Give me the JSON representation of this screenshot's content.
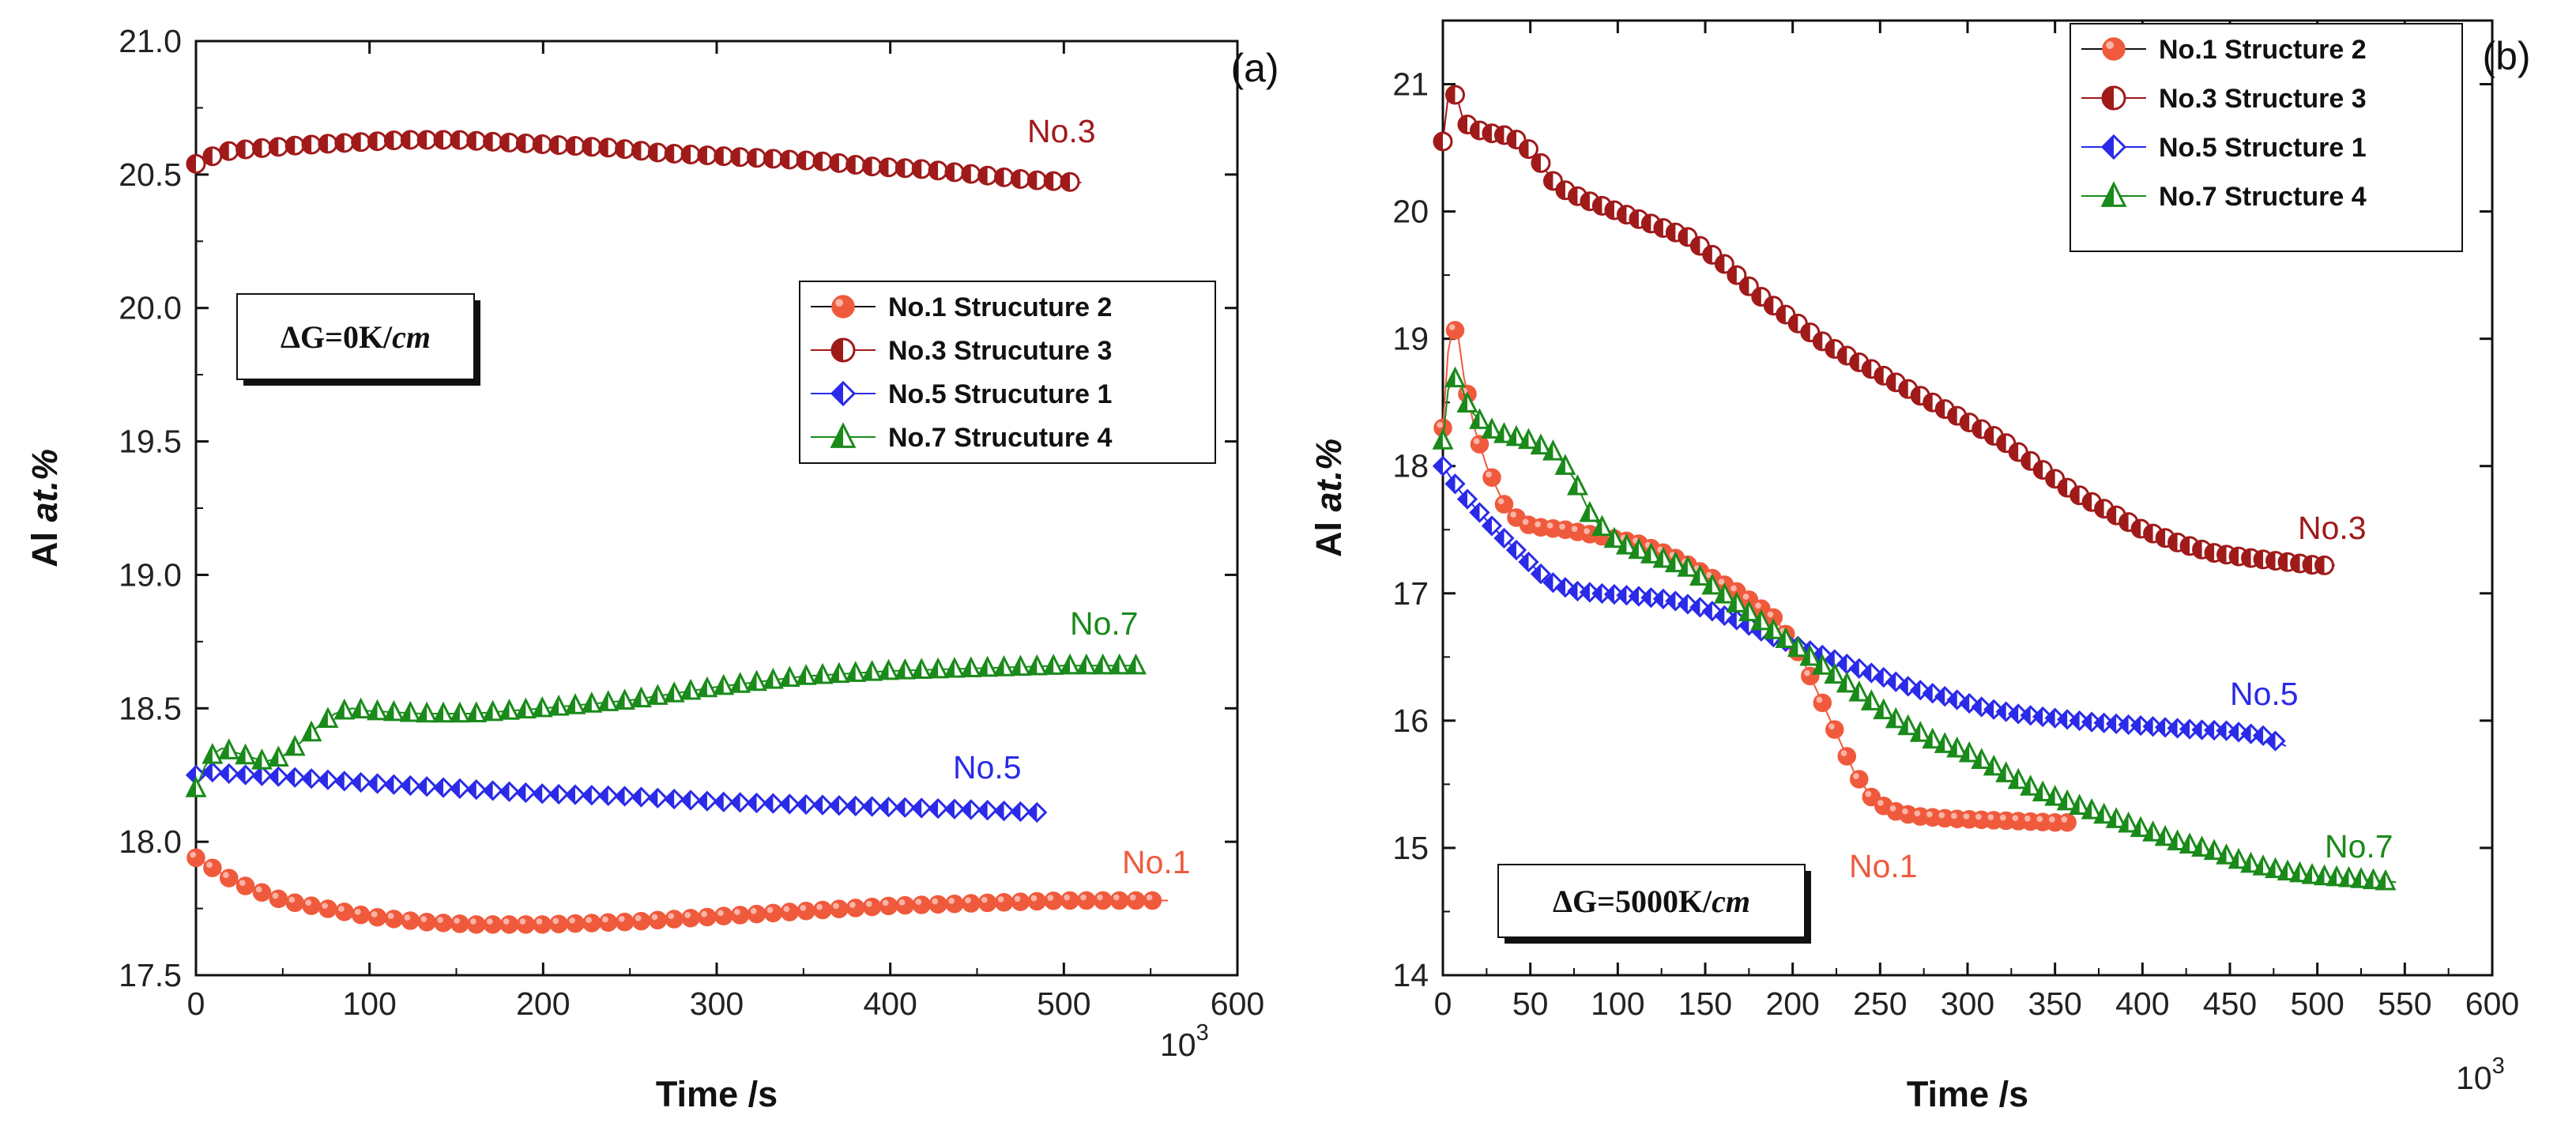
{
  "chart_data": [
    {
      "type": "scatter",
      "panel_label": "(a)",
      "xlabel": "Time /s",
      "ylabel_plain": "Al ",
      "ylabel_italic": "at.%",
      "x_multiplier_base": "10",
      "x_multiplier_exp": "3",
      "xlim": [
        0,
        600
      ],
      "ylim": [
        17.5,
        21.0
      ],
      "xticks": [
        0,
        100,
        200,
        300,
        400,
        500,
        600
      ],
      "yticks": [
        17.5,
        18.0,
        18.5,
        19.0,
        19.5,
        20.0,
        20.5,
        21.0
      ],
      "condition_box": {
        "prefix": "ΔG=0K/",
        "italic": "cm"
      },
      "legend_position": "right",
      "series": [
        {
          "name": "No.1 Strucuture 2",
          "annotation": "No.1",
          "color": "#f05a3c",
          "marker": "circle",
          "x": [
            0,
            10,
            20,
            30,
            50,
            75,
            100,
            130,
            160,
            200,
            250,
            300,
            350,
            400,
            450,
            500,
            530,
            560
          ],
          "y": [
            17.94,
            17.9,
            17.86,
            17.83,
            17.78,
            17.75,
            17.72,
            17.7,
            17.69,
            17.69,
            17.7,
            17.72,
            17.74,
            17.76,
            17.77,
            17.78,
            17.78,
            17.78
          ]
        },
        {
          "name": "No.3 Strucuture 3",
          "annotation": "No.3",
          "color": "#a01a1a",
          "marker": "half-circle",
          "x": [
            0,
            10,
            20,
            40,
            60,
            90,
            120,
            150,
            180,
            210,
            240,
            270,
            300,
            330,
            360,
            390,
            420,
            450,
            480,
            510
          ],
          "y": [
            20.54,
            20.57,
            20.59,
            20.6,
            20.61,
            20.62,
            20.63,
            20.63,
            20.62,
            20.61,
            20.6,
            20.58,
            20.57,
            20.56,
            20.55,
            20.53,
            20.52,
            20.5,
            20.48,
            20.47
          ]
        },
        {
          "name": "No.5 Strucuture 1",
          "annotation": "No.5",
          "color": "#2a2ae8",
          "marker": "half-diamond",
          "x": [
            0,
            5,
            10,
            30,
            60,
            100,
            150,
            200,
            250,
            300,
            350,
            400,
            450,
            485
          ],
          "y": [
            18.25,
            18.27,
            18.26,
            18.25,
            18.24,
            18.22,
            18.2,
            18.18,
            18.17,
            18.15,
            18.14,
            18.13,
            18.12,
            18.11
          ]
        },
        {
          "name": "No.7 Strucuture 4",
          "annotation": "No.7",
          "color": "#1a8a1a",
          "marker": "half-triangle",
          "x": [
            0,
            5,
            10,
            15,
            20,
            30,
            40,
            50,
            60,
            70,
            80,
            90,
            100,
            130,
            160,
            200,
            250,
            300,
            350,
            400,
            450,
            500,
            545
          ],
          "y": [
            18.2,
            18.28,
            18.33,
            18.35,
            18.34,
            18.32,
            18.3,
            18.32,
            18.37,
            18.43,
            18.48,
            18.5,
            18.49,
            18.48,
            18.48,
            18.5,
            18.53,
            18.58,
            18.62,
            18.64,
            18.65,
            18.66,
            18.66
          ]
        }
      ]
    },
    {
      "type": "scatter",
      "panel_label": "(b)",
      "xlabel": "Time /s",
      "ylabel_plain": "Al ",
      "ylabel_italic": "at.%",
      "x_multiplier_base": "10",
      "x_multiplier_exp": "3",
      "xlim": [
        0,
        600
      ],
      "ylim": [
        14,
        21.5
      ],
      "xticks": [
        0,
        50,
        100,
        150,
        200,
        250,
        300,
        350,
        400,
        450,
        500,
        550,
        600
      ],
      "yticks": [
        14,
        15,
        16,
        17,
        18,
        19,
        20,
        21
      ],
      "condition_box": {
        "prefix": "ΔG=5000K/",
        "italic": "cm"
      },
      "legend_position": "top-right",
      "series": [
        {
          "name": "No.1 Structure 2",
          "annotation": "No.1",
          "color": "#f05a3c",
          "marker": "circle",
          "x": [
            0,
            3,
            6,
            9,
            12,
            18,
            25,
            35,
            45,
            55,
            70,
            90,
            110,
            130,
            150,
            170,
            190,
            205,
            215,
            225,
            235,
            245,
            255,
            270,
            290,
            310,
            330,
            350,
            362
          ],
          "y": [
            18.3,
            18.9,
            19.1,
            19.0,
            18.7,
            18.3,
            18.0,
            17.7,
            17.55,
            17.52,
            17.5,
            17.45,
            17.4,
            17.3,
            17.15,
            17.0,
            16.8,
            16.5,
            16.2,
            15.9,
            15.6,
            15.4,
            15.3,
            15.25,
            15.23,
            15.22,
            15.21,
            15.2,
            15.2
          ]
        },
        {
          "name": "No.3 Structure 3",
          "annotation": "No.3",
          "color": "#a01a1a",
          "marker": "half-circle",
          "x": [
            0,
            3,
            6,
            9,
            12,
            18,
            25,
            35,
            45,
            55,
            65,
            80,
            100,
            120,
            140,
            160,
            180,
            200,
            220,
            240,
            260,
            280,
            300,
            320,
            340,
            360,
            380,
            400,
            420,
            440,
            460,
            480,
            500,
            510
          ],
          "y": [
            20.55,
            20.9,
            20.95,
            20.85,
            20.7,
            20.65,
            20.62,
            20.6,
            20.55,
            20.4,
            20.2,
            20.1,
            20.0,
            19.9,
            19.8,
            19.6,
            19.35,
            19.15,
            18.95,
            18.8,
            18.65,
            18.5,
            18.35,
            18.2,
            18.0,
            17.8,
            17.65,
            17.5,
            17.4,
            17.32,
            17.28,
            17.25,
            17.22,
            17.22
          ]
        },
        {
          "name": "No.5 Structure 1",
          "annotation": "No.5",
          "color": "#2a2ae8",
          "marker": "half-diamond",
          "x": [
            0,
            5,
            10,
            20,
            30,
            45,
            60,
            75,
            90,
            110,
            130,
            150,
            170,
            190,
            210,
            230,
            250,
            270,
            290,
            310,
            330,
            350,
            370,
            390,
            410,
            430,
            450,
            470,
            482
          ],
          "y": [
            18.0,
            17.9,
            17.8,
            17.65,
            17.5,
            17.3,
            17.1,
            17.02,
            17.0,
            16.98,
            16.95,
            16.88,
            16.78,
            16.65,
            16.55,
            16.45,
            16.35,
            16.25,
            16.18,
            16.1,
            16.05,
            16.02,
            15.99,
            15.97,
            15.95,
            15.93,
            15.92,
            15.88,
            15.8
          ]
        },
        {
          "name": "No.7 Structure 4",
          "annotation": "No.7",
          "color": "#1a8a1a",
          "marker": "half-triangle",
          "x": [
            0,
            3,
            6,
            10,
            15,
            25,
            35,
            50,
            65,
            75,
            85,
            100,
            120,
            140,
            160,
            180,
            200,
            220,
            240,
            260,
            280,
            300,
            320,
            340,
            360,
            380,
            400,
            420,
            440,
            460,
            480,
            500,
            520,
            545
          ],
          "y": [
            18.2,
            18.6,
            18.7,
            18.65,
            18.45,
            18.3,
            18.25,
            18.2,
            18.1,
            17.9,
            17.6,
            17.4,
            17.3,
            17.2,
            17.0,
            16.8,
            16.6,
            16.4,
            16.2,
            16.0,
            15.85,
            15.75,
            15.6,
            15.45,
            15.35,
            15.25,
            15.15,
            15.05,
            14.98,
            14.88,
            14.82,
            14.78,
            14.76,
            14.73
          ]
        }
      ]
    }
  ]
}
